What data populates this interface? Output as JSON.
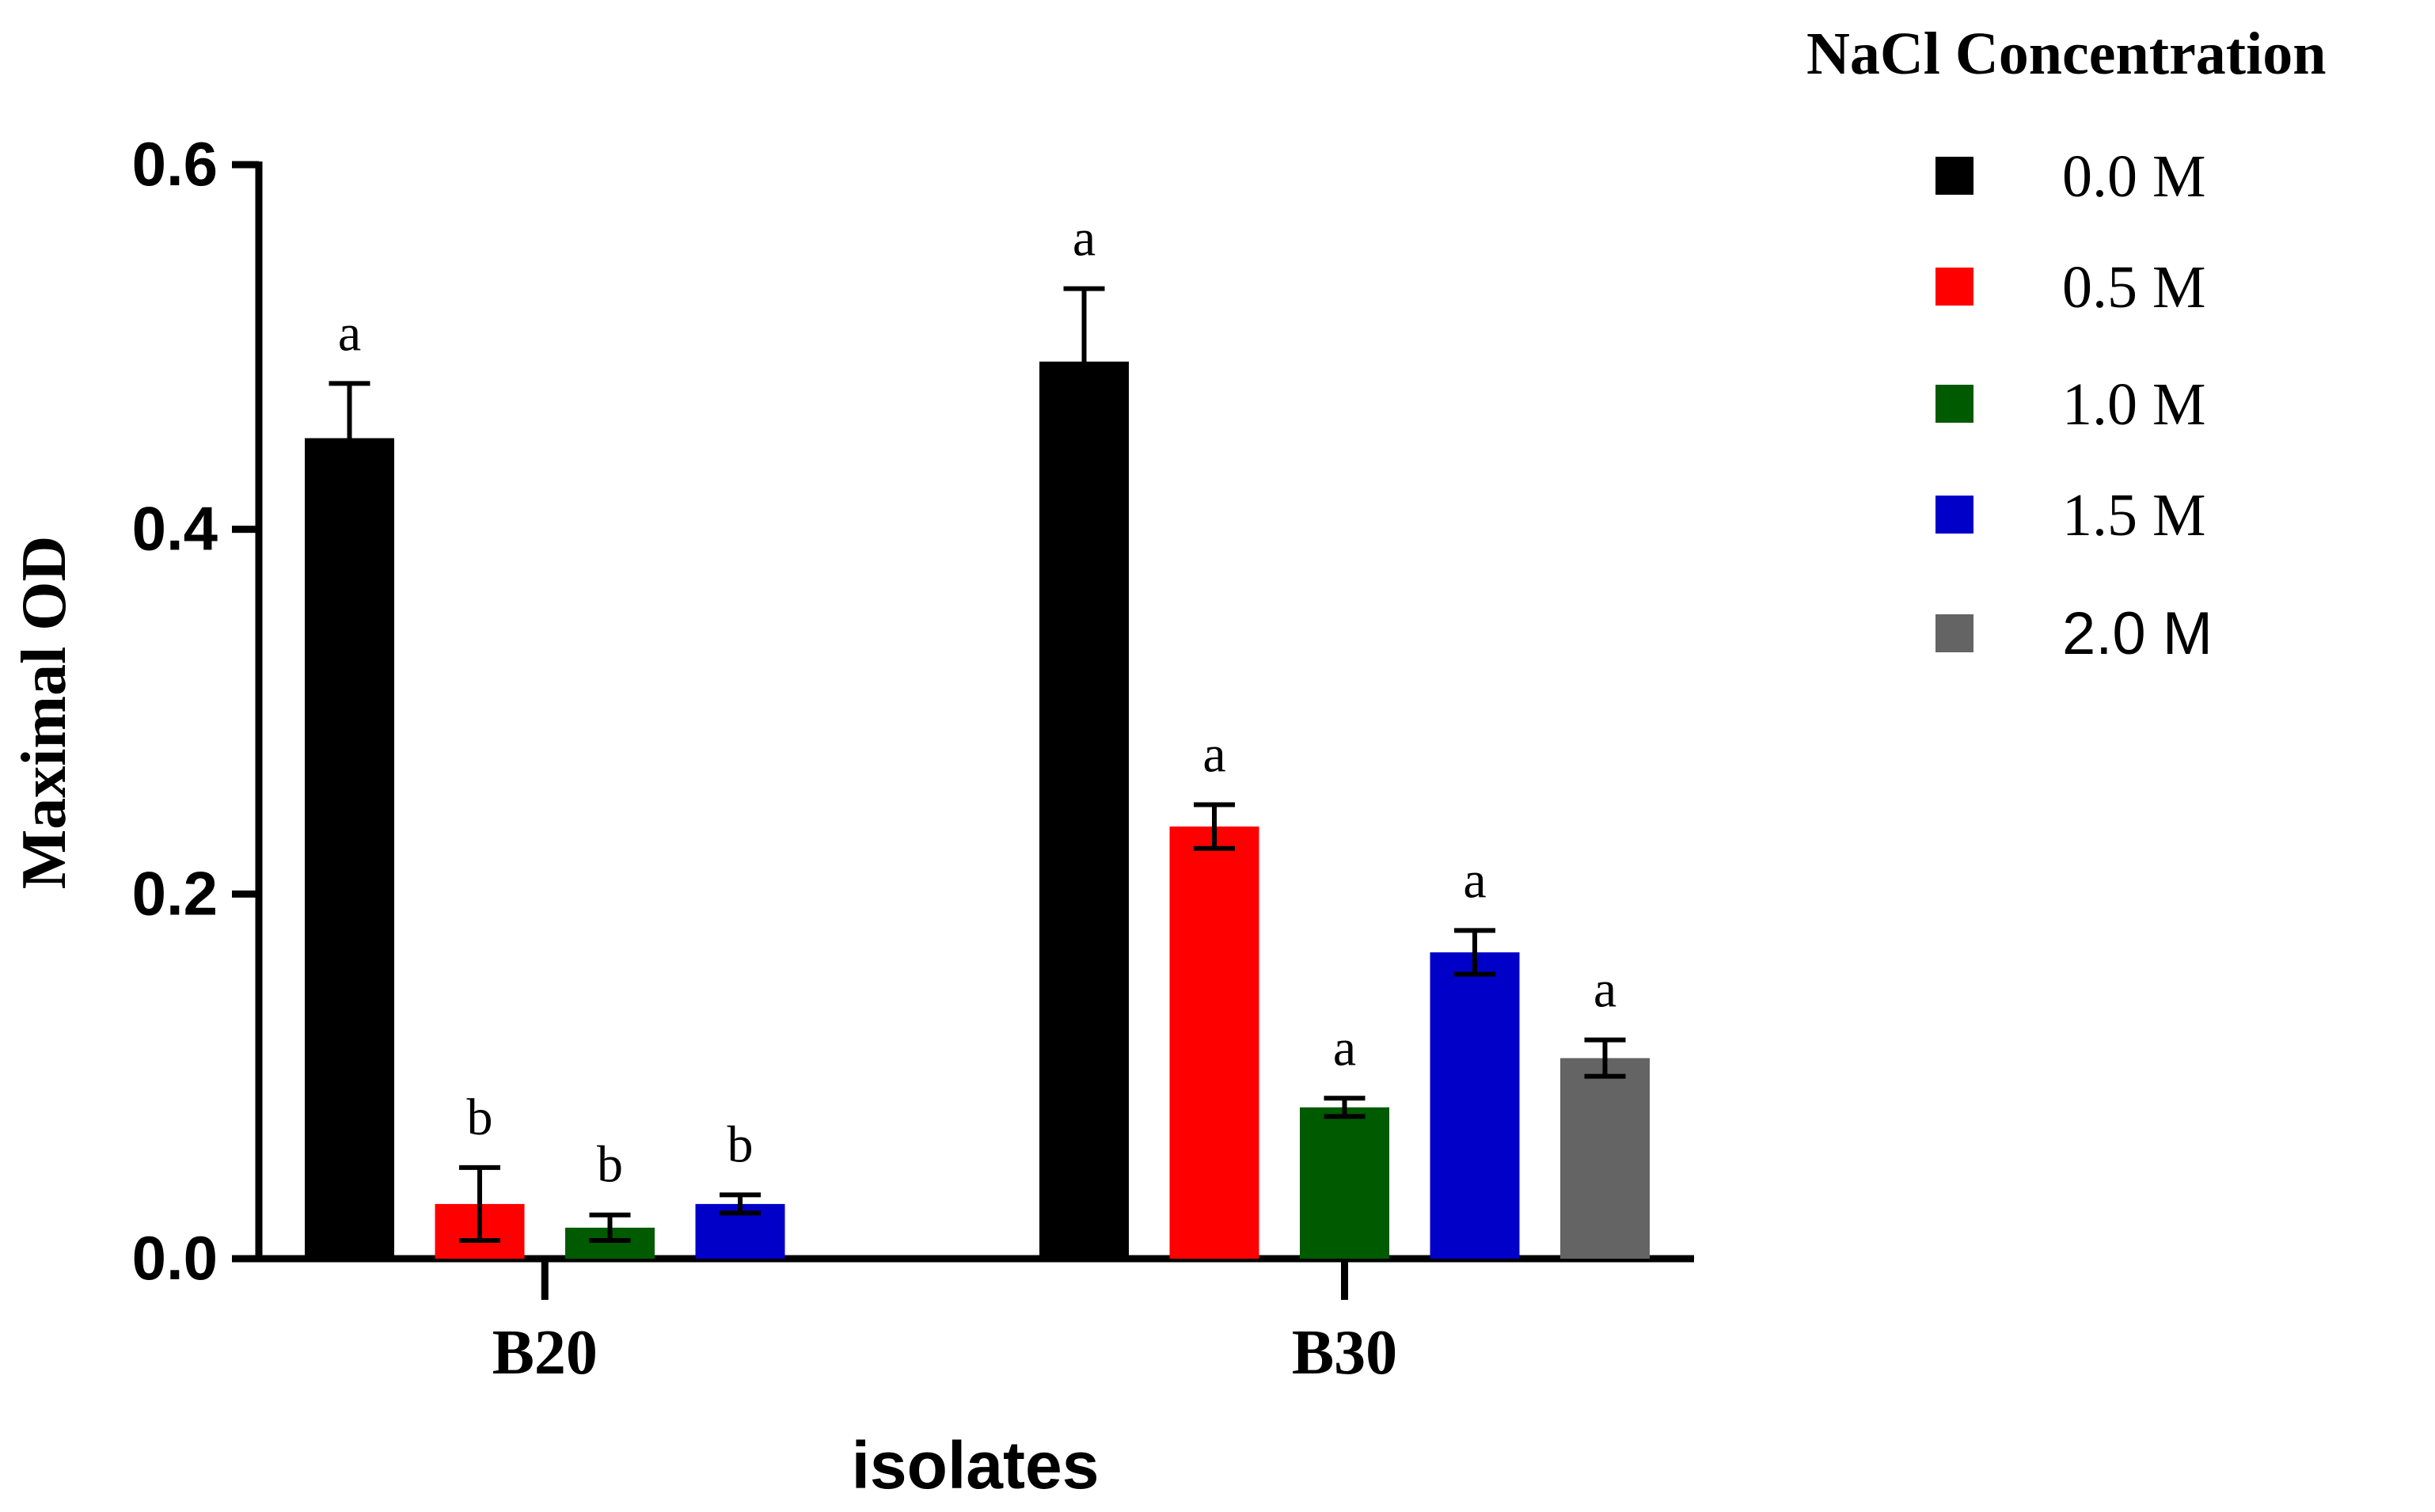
{
  "chart_data": {
    "type": "bar",
    "ylabel": "Maximal OD",
    "xlabel": "isolates",
    "ylim": [
      0,
      0.6
    ],
    "yticks": [
      0.0,
      0.2,
      0.4,
      0.6
    ],
    "ytick_labels": [
      "0.0",
      "0.2",
      "0.4",
      "0.6"
    ],
    "grid": false,
    "legend": {
      "title": "NaCl Concentration",
      "placement": "right"
    },
    "categories": [
      "B20",
      "B30"
    ],
    "series": [
      {
        "name": "0.0 M",
        "color": "#000000",
        "values": [
          0.45,
          0.492
        ],
        "errors": [
          0.03,
          0.04
        ],
        "letters": [
          "a",
          "a"
        ]
      },
      {
        "name": "0.5 M",
        "color": "#ff0000",
        "values": [
          0.03,
          0.237
        ],
        "errors": [
          0.02,
          0.012
        ],
        "letters": [
          "b",
          "a"
        ]
      },
      {
        "name": "1.0 M",
        "color": "#005a00",
        "values": [
          0.017,
          0.083
        ],
        "errors": [
          0.007,
          0.005
        ],
        "letters": [
          "b",
          "a"
        ]
      },
      {
        "name": "1.5 M",
        "color": "#0000c8",
        "values": [
          0.03,
          0.168
        ],
        "errors": [
          0.005,
          0.012
        ],
        "letters": [
          "b",
          "a"
        ]
      },
      {
        "name": "2.0 M",
        "color": "#646464",
        "values": [
          null,
          0.11
        ],
        "errors": [
          null,
          0.01
        ],
        "letters": [
          null,
          "a"
        ]
      }
    ]
  }
}
